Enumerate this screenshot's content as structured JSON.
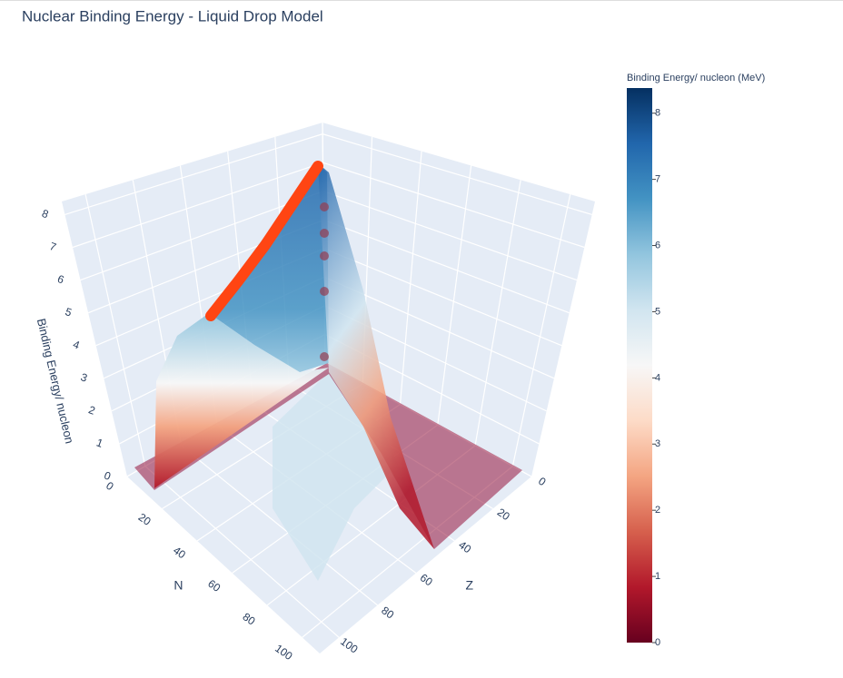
{
  "chart_data": {
    "type": "surface",
    "title": "Nuclear Binding Energy - Liquid Drop Model",
    "xlabel": "N",
    "xlim": [
      0,
      110
    ],
    "xticks": [
      0,
      20,
      40,
      60,
      80,
      100
    ],
    "ylabel": "Z",
    "ylim": [
      0,
      110
    ],
    "yticks": [
      0,
      20,
      40,
      60,
      80,
      100
    ],
    "zlabel": "Binding Energy/ nucleon",
    "zlim": [
      0,
      8.4
    ],
    "zticks": [
      0,
      1,
      2,
      3,
      4,
      5,
      6,
      7,
      8
    ],
    "grid": true,
    "colorbar": {
      "title": "Binding Energy/ nucleon (MeV)",
      "range": [
        0,
        8.38
      ],
      "ticks": [
        0,
        1,
        2,
        3,
        4,
        5,
        6,
        7,
        8
      ]
    },
    "colorscale": [
      "#67001f",
      "#b2182b",
      "#d6604d",
      "#f4a582",
      "#fddbc7",
      "#f7f7f7",
      "#d1e5f0",
      "#92c5de",
      "#4393c3",
      "#2166ac",
      "#053061"
    ]
  }
}
